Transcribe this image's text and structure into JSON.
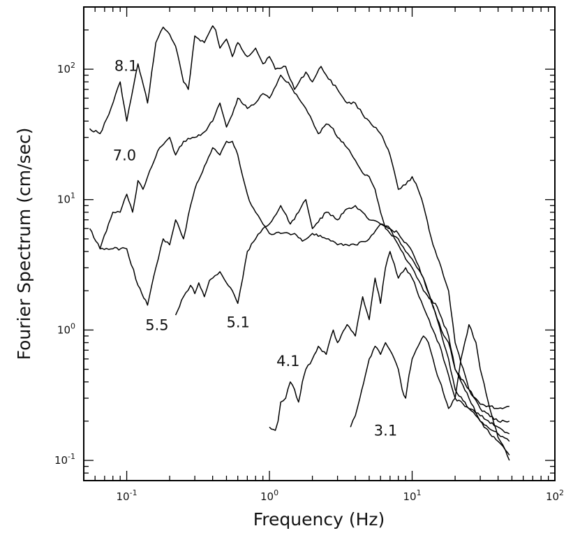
{
  "chart_data": {
    "type": "line",
    "title": "",
    "xlabel": "Frequency (Hz)",
    "ylabel": "Fourier Spectrum (cm/sec)",
    "x_scale": "log",
    "y_scale": "log",
    "xlim": [
      0.05,
      100
    ],
    "ylim": [
      0.07,
      300
    ],
    "x_ticks": [
      {
        "value": 0.1,
        "base": "10",
        "exp": "-1"
      },
      {
        "value": 1,
        "base": "10",
        "exp": "0"
      },
      {
        "value": 10,
        "base": "10",
        "exp": "1"
      },
      {
        "value": 100,
        "base": "10",
        "exp": "2"
      }
    ],
    "y_ticks": [
      {
        "value": 0.1,
        "base": "10",
        "exp": "-1"
      },
      {
        "value": 1,
        "base": "10",
        "exp": "0"
      },
      {
        "value": 10,
        "base": "10",
        "exp": "1"
      },
      {
        "value": 100,
        "base": "10",
        "exp": "2"
      }
    ],
    "grid": false,
    "legend": "none",
    "series": [
      {
        "name": "8.1",
        "label_at": [
          0.082,
          97
        ],
        "x": [
          0.055,
          0.065,
          0.075,
          0.09,
          0.1,
          0.12,
          0.14,
          0.16,
          0.18,
          0.2,
          0.22,
          0.25,
          0.27,
          0.3,
          0.35,
          0.4,
          0.42,
          0.45,
          0.5,
          0.55,
          0.6,
          0.7,
          0.8,
          0.9,
          1.0,
          1.1,
          1.3,
          1.5,
          1.8,
          2.0,
          2.3,
          2.5,
          3.0,
          3.5,
          4.0,
          4.5,
          5.0,
          6.0,
          7.0,
          8.0,
          9.0,
          10.0,
          11.0,
          12.0,
          14.0,
          16.0,
          18.0,
          20.0,
          25.0,
          30.0,
          40.0,
          48.0
        ],
        "y": [
          35,
          32,
          45,
          80,
          40,
          110,
          55,
          160,
          210,
          185,
          150,
          80,
          70,
          180,
          160,
          215,
          200,
          145,
          170,
          125,
          160,
          125,
          145,
          110,
          125,
          100,
          105,
          70,
          95,
          80,
          105,
          90,
          70,
          55,
          55,
          45,
          40,
          32,
          22,
          12,
          13,
          15,
          12,
          9,
          4.5,
          3.0,
          2.0,
          0.8,
          0.35,
          0.27,
          0.25,
          0.26
        ]
      },
      {
        "name": "7.0",
        "label_at": [
          0.08,
          20
        ],
        "x": [
          0.055,
          0.065,
          0.08,
          0.09,
          0.1,
          0.11,
          0.12,
          0.13,
          0.15,
          0.17,
          0.2,
          0.22,
          0.25,
          0.3,
          0.35,
          0.4,
          0.45,
          0.5,
          0.55,
          0.6,
          0.7,
          0.8,
          0.9,
          1.0,
          1.2,
          1.4,
          1.6,
          1.8,
          2.0,
          2.2,
          2.5,
          2.8,
          3.0,
          3.5,
          4.0,
          4.5,
          5.0,
          5.5,
          6.0,
          6.5,
          7.0,
          8.0,
          9.0,
          10.0,
          12.0,
          14.0,
          16.0,
          18.0,
          20.0,
          25.0,
          30.0,
          40.0,
          48.0
        ],
        "y": [
          6,
          4.2,
          8,
          8,
          11,
          8,
          14,
          12,
          18,
          25,
          30,
          22,
          28,
          30,
          33,
          40,
          55,
          36,
          45,
          60,
          50,
          55,
          65,
          60,
          90,
          75,
          60,
          50,
          40,
          32,
          38,
          35,
          30,
          25,
          20,
          16,
          15,
          12,
          8,
          6,
          5.5,
          5.0,
          4.0,
          3.5,
          2.5,
          1.5,
          1.0,
          0.8,
          0.5,
          0.3,
          0.2,
          0.16,
          0.14
        ]
      },
      {
        "name": "5.5",
        "label_at": [
          0.135,
          1.0
        ],
        "x": [
          0.065,
          0.08,
          0.1,
          0.12,
          0.14,
          0.16,
          0.18,
          0.2,
          0.22,
          0.25,
          0.28,
          0.3,
          0.35,
          0.4,
          0.45,
          0.5,
          0.55,
          0.6,
          0.65,
          0.7,
          0.75,
          0.8,
          0.9,
          1.0,
          1.2,
          1.5,
          1.7,
          2.0,
          2.5,
          3.0,
          3.5,
          4.0,
          5.0,
          6.0,
          7.0,
          8.0,
          9.0,
          10.0,
          12.0,
          15.0,
          18.0,
          20.0,
          25.0,
          30.0,
          40.0,
          48.0
        ],
        "y": [
          4.2,
          4.2,
          4.2,
          2.2,
          1.55,
          3.0,
          5.0,
          4.5,
          7.0,
          5.0,
          9,
          12,
          18,
          25,
          22,
          28,
          28,
          22,
          15,
          11,
          9,
          8,
          6.5,
          5.5,
          5.5,
          5.5,
          4.8,
          5.5,
          5.0,
          4.5,
          4.5,
          4.5,
          5.0,
          6.5,
          6.0,
          4.5,
          3.5,
          3.0,
          2.0,
          1.5,
          0.9,
          0.5,
          0.35,
          0.25,
          0.2,
          0.2
        ]
      },
      {
        "name": "5.1",
        "label_at": [
          0.5,
          1.05
        ],
        "x": [
          0.22,
          0.25,
          0.28,
          0.3,
          0.32,
          0.35,
          0.38,
          0.4,
          0.45,
          0.5,
          0.55,
          0.6,
          0.65,
          0.7,
          0.8,
          0.9,
          1.0,
          1.2,
          1.4,
          1.6,
          1.8,
          2.0,
          2.5,
          3.0,
          3.5,
          4.0,
          4.5,
          5.0,
          6.0,
          7.0,
          8.0,
          10.0,
          12.0,
          15.0,
          18.0,
          20.0,
          25.0,
          30.0,
          40.0,
          48.0
        ],
        "y": [
          1.3,
          1.8,
          2.2,
          1.9,
          2.3,
          1.8,
          2.4,
          2.5,
          2.8,
          2.3,
          2.0,
          1.6,
          2.5,
          4.0,
          5.0,
          6.0,
          6.5,
          9.0,
          6.5,
          8.0,
          10.0,
          6.0,
          8.0,
          7.0,
          8.5,
          9.0,
          8.0,
          7.0,
          6.5,
          6.0,
          5.5,
          4.0,
          2.5,
          1.2,
          0.6,
          0.35,
          0.25,
          0.22,
          0.18,
          0.16
        ]
      },
      {
        "name": "4.1",
        "label_at": [
          1.12,
          0.53
        ],
        "x": [
          1.0,
          1.1,
          1.15,
          1.2,
          1.3,
          1.4,
          1.5,
          1.6,
          1.7,
          1.8,
          2.0,
          2.2,
          2.5,
          2.8,
          3.0,
          3.5,
          4.0,
          4.5,
          5.0,
          5.5,
          6.0,
          6.5,
          7.0,
          7.5,
          8.0,
          9.0,
          10.0,
          12.0,
          14.0,
          16.0,
          18.0,
          20.0,
          25.0,
          30.0,
          35.0,
          40.0,
          45.0,
          48.0
        ],
        "y": [
          0.18,
          0.17,
          0.2,
          0.28,
          0.3,
          0.4,
          0.35,
          0.28,
          0.4,
          0.5,
          0.6,
          0.75,
          0.65,
          1.0,
          0.8,
          1.1,
          0.9,
          1.8,
          1.2,
          2.5,
          1.6,
          3.0,
          4.0,
          3.2,
          2.5,
          3.0,
          2.5,
          1.5,
          1.0,
          0.7,
          0.45,
          0.3,
          0.25,
          0.2,
          0.16,
          0.14,
          0.12,
          0.11
        ]
      },
      {
        "name": "3.1",
        "label_at": [
          5.4,
          0.155
        ],
        "x": [
          3.7,
          4.0,
          4.3,
          4.7,
          5.0,
          5.5,
          6.0,
          6.5,
          7.0,
          7.5,
          8.0,
          8.5,
          9.0,
          9.5,
          10.0,
          11.0,
          12.0,
          13.0,
          14.0,
          15.0,
          16.0,
          17.0,
          18.0,
          20.0,
          22.0,
          25.0,
          28.0,
          30.0,
          35.0,
          40.0,
          45.0,
          48.0
        ],
        "y": [
          0.18,
          0.22,
          0.3,
          0.45,
          0.6,
          0.75,
          0.65,
          0.8,
          0.7,
          0.6,
          0.5,
          0.35,
          0.3,
          0.45,
          0.6,
          0.75,
          0.9,
          0.8,
          0.6,
          0.45,
          0.38,
          0.3,
          0.25,
          0.3,
          0.6,
          1.1,
          0.8,
          0.5,
          0.25,
          0.15,
          0.12,
          0.1
        ]
      }
    ]
  }
}
